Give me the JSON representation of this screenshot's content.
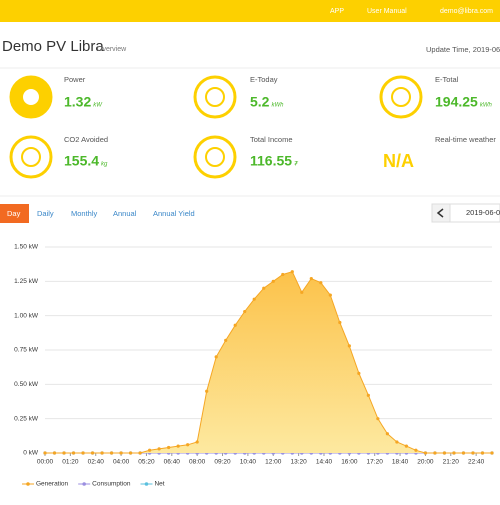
{
  "header": {
    "menu": [
      "APP",
      "User Manual",
      "demo@libra.com"
    ]
  },
  "page": {
    "title": "Demo PV Libra",
    "subtitle": "Overview",
    "update_time": "Update Time, 2019-06"
  },
  "stats": [
    {
      "label": "Power",
      "value": 1.32,
      "unit": "kW"
    },
    {
      "label": "E-Today",
      "value": 5.2,
      "unit": "kWh"
    },
    {
      "label": "E-Total",
      "value": 194.25,
      "unit": "kWh"
    },
    {
      "label": "CO2 Avoided",
      "value": 155.4,
      "unit": "kg"
    },
    {
      "label": "Total Income",
      "value": 116.55,
      "unit": "₮"
    },
    {
      "label": "Real-time weather",
      "value": "N/A"
    }
  ],
  "tabs": [
    "Day",
    "Daily",
    "Monthly",
    "Annual",
    "Annual Yield"
  ],
  "date": "2019-06-0",
  "chart_data": {
    "type": "area",
    "x": [
      0,
      30,
      60,
      90,
      120,
      150,
      180,
      210,
      240,
      270,
      300,
      330,
      360,
      390,
      420,
      450,
      480,
      510,
      540,
      570,
      600,
      630,
      660,
      690,
      720,
      750,
      780,
      810,
      840,
      870,
      900,
      930,
      960,
      990,
      1020,
      1050,
      1080,
      1110,
      1140,
      1170,
      1200,
      1230,
      1260,
      1290,
      1320,
      1350,
      1380,
      1410
    ],
    "xlim": [
      0,
      1410
    ],
    "xticks": [
      {
        "value": 0,
        "label": "00:00"
      },
      {
        "value": 80,
        "label": "01:20"
      },
      {
        "value": 160,
        "label": "02:40"
      },
      {
        "value": 240,
        "label": "04:00"
      },
      {
        "value": 320,
        "label": "05:20"
      },
      {
        "value": 400,
        "label": "06:40"
      },
      {
        "value": 480,
        "label": "08:00"
      },
      {
        "value": 560,
        "label": "09:20"
      },
      {
        "value": 640,
        "label": "10:40"
      },
      {
        "value": 720,
        "label": "12:00"
      },
      {
        "value": 800,
        "label": "13:20"
      },
      {
        "value": 880,
        "label": "14:40"
      },
      {
        "value": 960,
        "label": "16:00"
      },
      {
        "value": 1040,
        "label": "17:20"
      },
      {
        "value": 1120,
        "label": "18:40"
      },
      {
        "value": 1200,
        "label": "20:00"
      },
      {
        "value": 1280,
        "label": "21:20"
      },
      {
        "value": 1360,
        "label": "22:40"
      }
    ],
    "ylim": [
      0,
      1.5
    ],
    "yticks": [
      {
        "value": 0,
        "label": "0 kW"
      },
      {
        "value": 0.25,
        "label": "0.25 kW"
      },
      {
        "value": 0.5,
        "label": "0.50 kW"
      },
      {
        "value": 0.75,
        "label": "0.75 kW"
      },
      {
        "value": 1,
        "label": "1.00 kW"
      },
      {
        "value": 1.25,
        "label": "1.25 kW"
      },
      {
        "value": 1.5,
        "label": "1.50 kW"
      }
    ],
    "grid": true,
    "series": [
      {
        "name": "Generation",
        "color": "#f5a623",
        "values": [
          0,
          0,
          0,
          0,
          0,
          0,
          0,
          0,
          0,
          0,
          0,
          0.02,
          0.03,
          0.04,
          0.05,
          0.06,
          0.08,
          0.45,
          0.7,
          0.82,
          0.93,
          1.03,
          1.12,
          1.2,
          1.25,
          1.3,
          1.32,
          1.17,
          1.27,
          1.24,
          1.15,
          0.95,
          0.78,
          0.58,
          0.42,
          0.25,
          0.14,
          0.08,
          0.05,
          0.02,
          0,
          0,
          0,
          0,
          0,
          0,
          0,
          0
        ]
      },
      {
        "name": "Consumption",
        "color": "#9b8fe0",
        "values": [
          0,
          0,
          0,
          0,
          0,
          0,
          0,
          0,
          0,
          0,
          0,
          0,
          0,
          0,
          0,
          0,
          0,
          0,
          0,
          0,
          0,
          0,
          0,
          0,
          0,
          0,
          0,
          0,
          0,
          0,
          0,
          0,
          0,
          0,
          0,
          0,
          0,
          0,
          0,
          0,
          0,
          0,
          0,
          0,
          0,
          0,
          0,
          0
        ]
      },
      {
        "name": "Net",
        "color": "#5bc0de",
        "values": [
          0,
          0,
          0,
          0,
          0,
          0,
          0,
          0,
          0,
          0,
          0,
          0,
          0,
          0,
          0,
          0,
          0,
          0,
          0,
          0,
          0,
          0,
          0,
          0,
          0,
          0,
          0,
          0,
          0,
          0,
          0,
          0,
          0,
          0,
          0,
          0,
          0,
          0,
          0,
          0,
          0,
          0,
          0,
          0,
          0,
          0,
          0,
          0
        ]
      }
    ]
  }
}
